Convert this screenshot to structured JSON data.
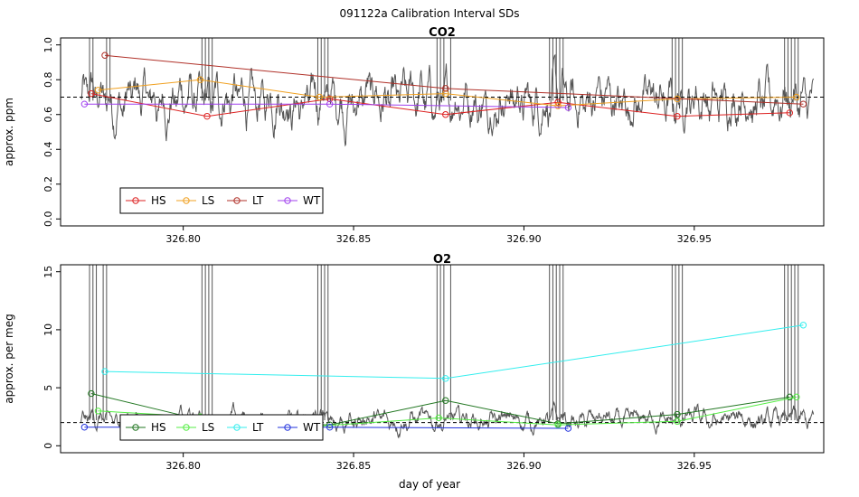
{
  "figure": {
    "title": "091122a   Calibration Interval SDs",
    "xlabel": "day of year"
  },
  "chart_data": [
    {
      "type": "line",
      "title": "CO2",
      "xlabel": "",
      "ylabel": "approx. ppm",
      "xlim": [
        326.764,
        326.988
      ],
      "ylim": [
        -0.04,
        1.04
      ],
      "xticks": [
        326.8,
        326.85,
        326.9,
        326.95
      ],
      "xtick_labels": [
        "326.80",
        "326.85",
        "326.90",
        "326.95"
      ],
      "yticks": [
        0.0,
        0.2,
        0.4,
        0.6,
        0.8,
        1.0
      ],
      "ytick_labels": [
        "0.0",
        "0.2",
        "0.4",
        "0.6",
        "0.8",
        "1.0"
      ],
      "hline": 0.7,
      "legend": "bottom-left",
      "raw_trace": {
        "color": "#555555",
        "base": 0.68,
        "amplitude": 0.1,
        "spike_x": [
          326.7725,
          326.7735,
          326.7775,
          326.7785,
          326.8055,
          326.8065,
          326.8075,
          326.8085,
          326.8395,
          326.8405,
          326.8415,
          326.8425,
          326.8745,
          326.8755,
          326.8765,
          326.8785,
          326.9075,
          326.9085,
          326.9095,
          326.9105,
          326.9115,
          326.9435,
          326.9445,
          326.9455,
          326.9465,
          326.9765,
          326.9775,
          326.9785,
          326.9795,
          326.9805
        ]
      },
      "series": [
        {
          "name": "HS",
          "color": "#dd2222",
          "x": [
            326.773,
            326.807,
            326.843,
            326.877,
            326.91,
            326.945,
            326.978
          ],
          "y": [
            0.72,
            0.59,
            0.69,
            0.6,
            0.67,
            0.59,
            0.61
          ]
        },
        {
          "name": "LS",
          "color": "#f0a020",
          "x": [
            326.775,
            326.805,
            326.84,
            326.877,
            326.91,
            326.945,
            326.98
          ],
          "y": [
            0.74,
            0.8,
            0.7,
            0.72,
            0.65,
            0.69,
            0.7
          ]
        },
        {
          "name": "LT",
          "color": "#b03028",
          "x": [
            326.777,
            326.877,
            326.982
          ],
          "y": [
            0.94,
            0.75,
            0.66
          ]
        },
        {
          "name": "WT",
          "color": "#a040ee",
          "x": [
            326.771,
            326.843,
            326.913
          ],
          "y": [
            0.66,
            0.66,
            0.64
          ]
        }
      ]
    },
    {
      "type": "line",
      "title": "O2",
      "xlabel": "day of year",
      "ylabel": "approx. per meg",
      "xlim": [
        326.764,
        326.988
      ],
      "ylim": [
        -0.6,
        15.6
      ],
      "xticks": [
        326.8,
        326.85,
        326.9,
        326.95
      ],
      "xtick_labels": [
        "326.80",
        "326.85",
        "326.90",
        "326.95"
      ],
      "yticks": [
        0,
        5,
        10,
        15
      ],
      "ytick_labels": [
        "0",
        "5",
        "10",
        "15"
      ],
      "hline": 2.0,
      "legend": "bottom-left",
      "raw_trace": {
        "color": "#555555",
        "base": 2.2,
        "amplitude": 0.6,
        "spike_x": [
          326.7725,
          326.7735,
          326.7745,
          326.7765,
          326.7775,
          326.8055,
          326.8065,
          326.8075,
          326.8085,
          326.8395,
          326.8405,
          326.8415,
          326.8425,
          326.8745,
          326.8755,
          326.8765,
          326.8785,
          326.9075,
          326.9085,
          326.9095,
          326.9105,
          326.9115,
          326.9435,
          326.9445,
          326.9455,
          326.9465,
          326.9765,
          326.9775,
          326.9785,
          326.9795,
          326.9805
        ]
      },
      "series": [
        {
          "name": "HS",
          "color": "#227722",
          "x": [
            326.773,
            326.807,
            326.843,
            326.877,
            326.91,
            326.945,
            326.978
          ],
          "y": [
            4.5,
            2.1,
            1.8,
            3.9,
            1.9,
            2.7,
            4.2
          ]
        },
        {
          "name": "LS",
          "color": "#55ee44",
          "x": [
            326.775,
            326.805,
            326.84,
            326.875,
            326.91,
            326.945,
            326.98
          ],
          "y": [
            3.0,
            2.5,
            1.7,
            2.4,
            1.8,
            2.1,
            4.2
          ]
        },
        {
          "name": "LT",
          "color": "#33eeee",
          "x": [
            326.777,
            326.877,
            326.982
          ],
          "y": [
            6.4,
            5.8,
            10.4
          ]
        },
        {
          "name": "WT",
          "color": "#2233dd",
          "x": [
            326.771,
            326.843,
            326.913
          ],
          "y": [
            1.6,
            1.6,
            1.5
          ]
        }
      ]
    }
  ]
}
